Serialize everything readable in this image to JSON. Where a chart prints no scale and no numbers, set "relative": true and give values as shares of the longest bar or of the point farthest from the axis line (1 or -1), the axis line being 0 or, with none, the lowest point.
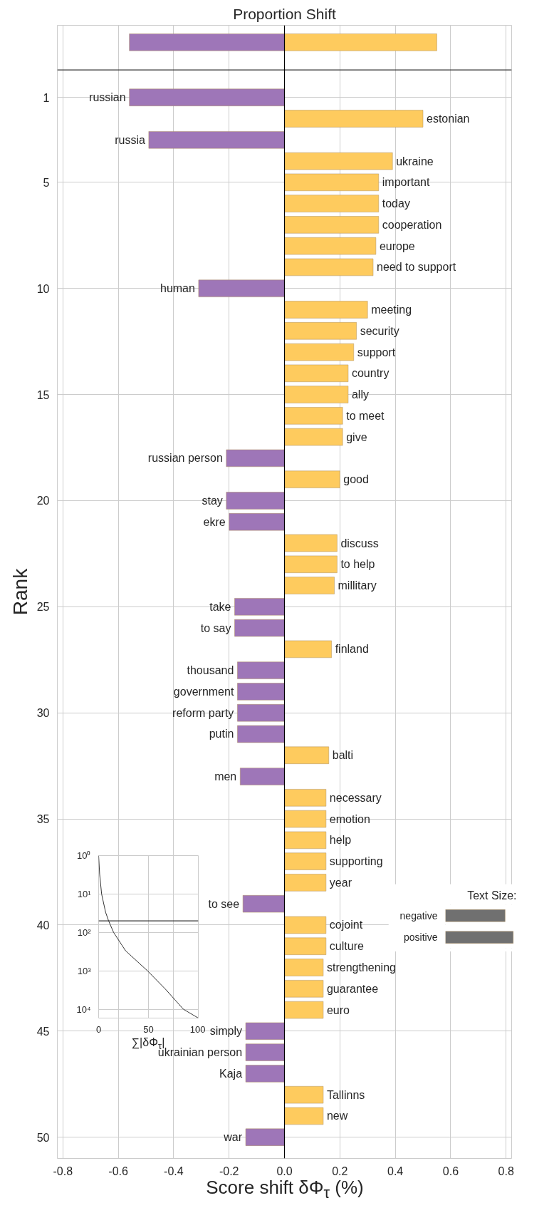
{
  "chart_data": [
    {
      "type": "bar",
      "orientation": "horizontal",
      "title": "Proportion Shift",
      "xlabel": "Score shift δΦ$_{τ}$ (%)",
      "ylabel": "Rank",
      "xlim": [
        -0.82,
        0.82
      ],
      "xticks": [
        -0.8,
        -0.6,
        -0.4,
        -0.2,
        {
          "value": 0,
          "label": "0.0"
        },
        0.2,
        0.4,
        0.6,
        0.8
      ],
      "ylim": [
        51,
        -2.4
      ],
      "yticks": [
        1,
        5,
        10,
        15,
        20,
        25,
        30,
        35,
        40,
        45,
        50
      ],
      "grid": true,
      "series": [
        {
          "x": [
            -1.6,
            -1.6
          ],
          "values": [
            -0.56,
            0.55
          ],
          "colors": [
            "#9e76b8",
            "#fecb5e"
          ]
        },
        {
          "x": [
            1,
            2,
            3,
            4,
            5,
            6,
            7,
            8,
            9,
            10,
            11,
            12,
            13,
            14,
            15,
            16,
            17,
            18,
            19,
            20,
            21,
            22,
            23,
            24,
            25,
            26,
            27,
            28,
            29,
            30,
            31,
            32,
            33,
            34,
            35,
            36,
            37,
            38,
            39,
            40,
            41,
            42,
            43,
            44,
            45,
            46,
            47,
            48,
            49,
            50
          ],
          "values": [
            -0.56,
            0.5,
            -0.49,
            0.39,
            0.34,
            0.34,
            0.34,
            0.33,
            0.32,
            -0.31,
            0.3,
            0.26,
            0.25,
            0.23,
            0.23,
            0.21,
            0.21,
            -0.21,
            0.2,
            -0.21,
            -0.2,
            0.19,
            0.19,
            0.18,
            -0.18,
            -0.18,
            0.17,
            -0.17,
            -0.17,
            -0.17,
            -0.17,
            0.16,
            -0.16,
            0.15,
            0.15,
            0.15,
            0.15,
            0.15,
            -0.15,
            0.15,
            0.15,
            0.14,
            0.14,
            0.14,
            -0.14,
            -0.14,
            -0.14,
            0.14,
            0.14,
            -0.14
          ],
          "colors": [
            "#9e76b8",
            "#fecb5e",
            "#9e76b8",
            "#fecb5e",
            "#fecb5e",
            "#fecb5e",
            "#fecb5e",
            "#fecb5e",
            "#fecb5e",
            "#9e76b8",
            "#fecb5e",
            "#fecb5e",
            "#fecb5e",
            "#fecb5e",
            "#fecb5e",
            "#fecb5e",
            "#fecb5e",
            "#9e76b8",
            "#fecb5e",
            "#9e76b8",
            "#9e76b8",
            "#fecb5e",
            "#fecb5e",
            "#fecb5e",
            "#9e76b8",
            "#9e76b8",
            "#fecb5e",
            "#9e76b8",
            "#9e76b8",
            "#9e76b8",
            "#9e76b8",
            "#fecb5e",
            "#9e76b8",
            "#fecb5e",
            "#fecb5e",
            "#fecb5e",
            "#fecb5e",
            "#fecb5e",
            "#9e76b8",
            "#fecb5e",
            "#fecb5e",
            "#fecb5e",
            "#fecb5e",
            "#fecb5e",
            "#9e76b8",
            "#9e76b8",
            "#9e76b8",
            "#fecb5e",
            "#fecb5e",
            "#9e76b8"
          ]
        }
      ],
      "ref_lines": [
        {
          "axis": "y",
          "value": -0.3,
          "color": "#333333"
        },
        {
          "axis": "x",
          "value": 0,
          "color": "#000000"
        }
      ],
      "annotations": [
        {
          "text": "russian",
          "x": -0.56,
          "y": 1
        },
        {
          "text": "estonian",
          "x": 0.5,
          "y": 2
        },
        {
          "text": "russia",
          "x": -0.49,
          "y": 3
        },
        {
          "text": "ukraine",
          "x": 0.39,
          "y": 4
        },
        {
          "text": "important",
          "x": 0.34,
          "y": 5
        },
        {
          "text": "today",
          "x": 0.34,
          "y": 6
        },
        {
          "text": "cooperation",
          "x": 0.34,
          "y": 7
        },
        {
          "text": "europe",
          "x": 0.33,
          "y": 8
        },
        {
          "text": "need to support",
          "x": 0.32,
          "y": 9
        },
        {
          "text": "human",
          "x": -0.31,
          "y": 10
        },
        {
          "text": "meeting",
          "x": 0.3,
          "y": 11
        },
        {
          "text": "security",
          "x": 0.26,
          "y": 12
        },
        {
          "text": "support",
          "x": 0.25,
          "y": 13
        },
        {
          "text": "country",
          "x": 0.23,
          "y": 14
        },
        {
          "text": "ally",
          "x": 0.23,
          "y": 15
        },
        {
          "text": "to meet",
          "x": 0.21,
          "y": 16
        },
        {
          "text": "give",
          "x": 0.21,
          "y": 17
        },
        {
          "text": "russian person",
          "x": -0.21,
          "y": 18
        },
        {
          "text": "good",
          "x": 0.2,
          "y": 19
        },
        {
          "text": "stay",
          "x": -0.21,
          "y": 20
        },
        {
          "text": "ekre",
          "x": -0.2,
          "y": 21
        },
        {
          "text": "discuss",
          "x": 0.19,
          "y": 22
        },
        {
          "text": "to help",
          "x": 0.19,
          "y": 23
        },
        {
          "text": "millitary",
          "x": 0.18,
          "y": 24
        },
        {
          "text": "take",
          "x": -0.18,
          "y": 25
        },
        {
          "text": "to say",
          "x": -0.18,
          "y": 26
        },
        {
          "text": "finland",
          "x": 0.17,
          "y": 27
        },
        {
          "text": "thousand",
          "x": -0.17,
          "y": 28
        },
        {
          "text": "government",
          "x": -0.17,
          "y": 29
        },
        {
          "text": "reform party",
          "x": -0.17,
          "y": 30
        },
        {
          "text": "putin",
          "x": -0.17,
          "y": 31
        },
        {
          "text": "balti",
          "x": 0.16,
          "y": 32
        },
        {
          "text": "men",
          "x": -0.16,
          "y": 33
        },
        {
          "text": "necessary",
          "x": 0.15,
          "y": 34
        },
        {
          "text": "emotion",
          "x": 0.15,
          "y": 35
        },
        {
          "text": "help",
          "x": 0.15,
          "y": 36
        },
        {
          "text": "supporting",
          "x": 0.15,
          "y": 37
        },
        {
          "text": "year",
          "x": 0.15,
          "y": 38
        },
        {
          "text": "to see",
          "x": -0.15,
          "y": 39
        },
        {
          "text": "cojoint",
          "x": 0.15,
          "y": 40
        },
        {
          "text": "culture",
          "x": 0.15,
          "y": 41
        },
        {
          "text": "strengthening",
          "x": 0.14,
          "y": 42
        },
        {
          "text": "guarantee",
          "x": 0.14,
          "y": 43
        },
        {
          "text": "euro",
          "x": 0.14,
          "y": 44
        },
        {
          "text": "simply",
          "x": -0.14,
          "y": 45
        },
        {
          "text": "ukrainian person",
          "x": -0.14,
          "y": 46
        },
        {
          "text": "Kaja",
          "x": -0.14,
          "y": 47
        },
        {
          "text": "Tallinns",
          "x": 0.14,
          "y": 48
        },
        {
          "text": "new",
          "x": 0.14,
          "y": 49
        },
        {
          "text": "war",
          "x": -0.14,
          "y": 50
        }
      ]
    },
    {
      "type": "line",
      "xlabel": "∑|δΦ$_{τ}$|",
      "log": "y",
      "xlim": [
        0,
        100
      ],
      "xticks": [
        0,
        50,
        100
      ],
      "ylim": [
        17000,
        1
      ],
      "yticks": [
        {
          "value": 1,
          "label": "10⁰"
        },
        {
          "value": 10,
          "label": "10¹"
        },
        {
          "value": 100,
          "label": "10²"
        },
        {
          "value": 1000,
          "label": "10³"
        },
        {
          "value": 10000,
          "label": "10⁴"
        }
      ],
      "grid": true,
      "series": [
        {
          "color": "#333333",
          "x": [
            0,
            1,
            3,
            7,
            10,
            15,
            27,
            49,
            67,
            85,
            100
          ],
          "values": [
            1,
            3,
            10,
            30,
            50,
            100,
            300,
            1000,
            3000,
            10000,
            17000
          ]
        }
      ],
      "ref_lines": [
        {
          "axis": "y",
          "value": 50,
          "color": "#333333"
        }
      ]
    },
    {
      "type": "bar",
      "orientation": "horizontal",
      "relative": true,
      "title": "Text Size:",
      "categories": [
        "negative",
        "positive"
      ],
      "values": [
        0.88,
        1
      ],
      "color": "#707070",
      "tick_labels": "y"
    }
  ]
}
